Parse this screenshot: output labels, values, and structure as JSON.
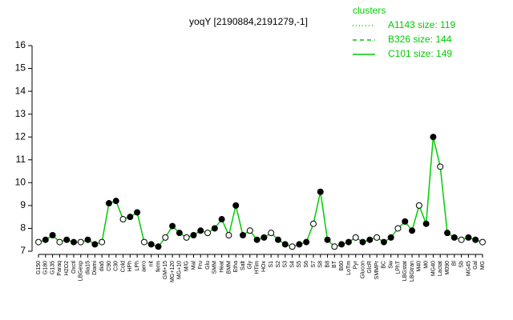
{
  "chart_data": {
    "type": "line",
    "title": "yoqY [2190884,2191279,-1]",
    "legend": {
      "title": "clusters",
      "color": "#00cc00",
      "entries": [
        {
          "label": "A1143 size: 119",
          "dash": "dotted"
        },
        {
          "label": "B326 size: 144",
          "dash": "dashed"
        },
        {
          "label": "C101 size: 149",
          "dash": "solid"
        }
      ]
    },
    "categories": [
      "G150",
      "G180",
      "G135",
      "Paraq",
      "H2O2",
      "Oxctl",
      "LBGexp",
      "dia15",
      "Diami",
      "dia5",
      "C90",
      "C30",
      "Cold",
      "HPh",
      "LPh",
      "aero",
      "nit",
      "ferm",
      "GM+15",
      "MG+120",
      "MG+10",
      "M/G",
      "Mal",
      "Fru",
      "Glu",
      "SMM",
      "Heat",
      "BMM",
      "Etha",
      "Salt",
      "Gly",
      "HTim",
      "HOx",
      "S1",
      "S2",
      "S3",
      "S4",
      "S5",
      "S6",
      "S7",
      "S8",
      "B8",
      "BT",
      "B60",
      "LoTm",
      "Pyr",
      "Glucon",
      "GlcR",
      "SMMPr",
      "BC",
      "Sw",
      "LPhT",
      "LBGstat",
      "LBGtran",
      "M40",
      "M0",
      "MG40",
      "Lactat",
      "M090",
      "Bl",
      "Sb",
      "MG45",
      "Gal",
      "MG"
    ],
    "series": [
      {
        "name": "C101",
        "color": "#00cc00",
        "values": [
          7.4,
          7.5,
          7.7,
          7.4,
          7.5,
          7.4,
          7.4,
          7.5,
          7.3,
          7.4,
          9.1,
          9.2,
          8.4,
          8.5,
          8.7,
          7.4,
          7.3,
          7.2,
          7.6,
          8.1,
          7.8,
          7.6,
          7.7,
          7.9,
          7.8,
          8.0,
          8.4,
          7.7,
          9.0,
          7.7,
          7.9,
          7.5,
          7.6,
          7.8,
          7.5,
          7.3,
          7.2,
          7.3,
          7.4,
          8.2,
          9.6,
          7.5,
          7.2,
          7.3,
          7.4,
          7.6,
          7.4,
          7.5,
          7.6,
          7.4,
          7.6,
          8.0,
          8.3,
          7.9,
          9.0,
          8.2,
          12.0,
          10.7,
          7.8,
          7.6,
          7.5,
          7.6,
          7.5,
          7.4
        ]
      }
    ],
    "ylim": [
      7,
      16
    ],
    "yticks": [
      7,
      8,
      9,
      10,
      11,
      12,
      13,
      14,
      15,
      16
    ]
  }
}
